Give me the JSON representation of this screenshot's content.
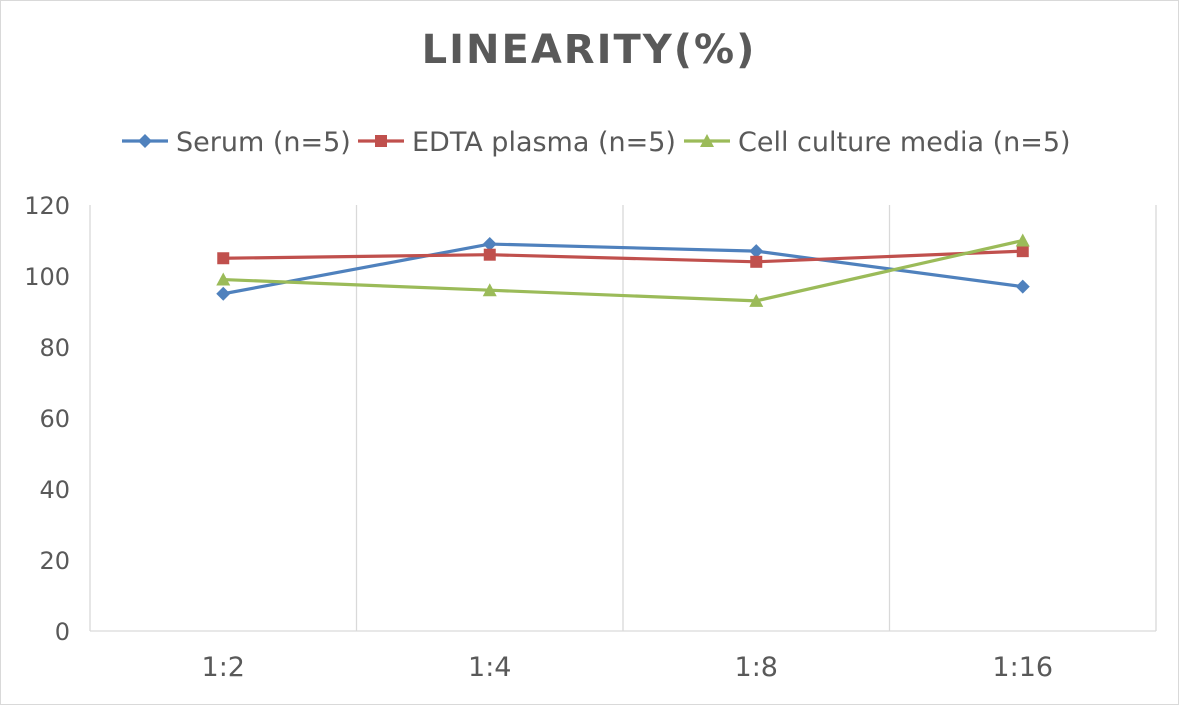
{
  "chart_data": {
    "type": "line",
    "title": "LINEARITY(%)",
    "categories": [
      "1:2",
      "1:4",
      "1:8",
      "1:16"
    ],
    "ylim": [
      0,
      120
    ],
    "yticks": [
      0,
      20,
      40,
      60,
      80,
      100,
      120
    ],
    "grid": "vertical",
    "legend_position": "top",
    "series": [
      {
        "name": "Serum (n=5)",
        "values": [
          95,
          109,
          107,
          97
        ],
        "color": "#4f81bd",
        "marker": "diamond"
      },
      {
        "name": "EDTA plasma (n=5)",
        "values": [
          105,
          106,
          104,
          107
        ],
        "color": "#c0504d",
        "marker": "square"
      },
      {
        "name": "Cell culture media (n=5)",
        "values": [
          99,
          96,
          93,
          110
        ],
        "color": "#9bbb59",
        "marker": "triangle"
      }
    ]
  }
}
